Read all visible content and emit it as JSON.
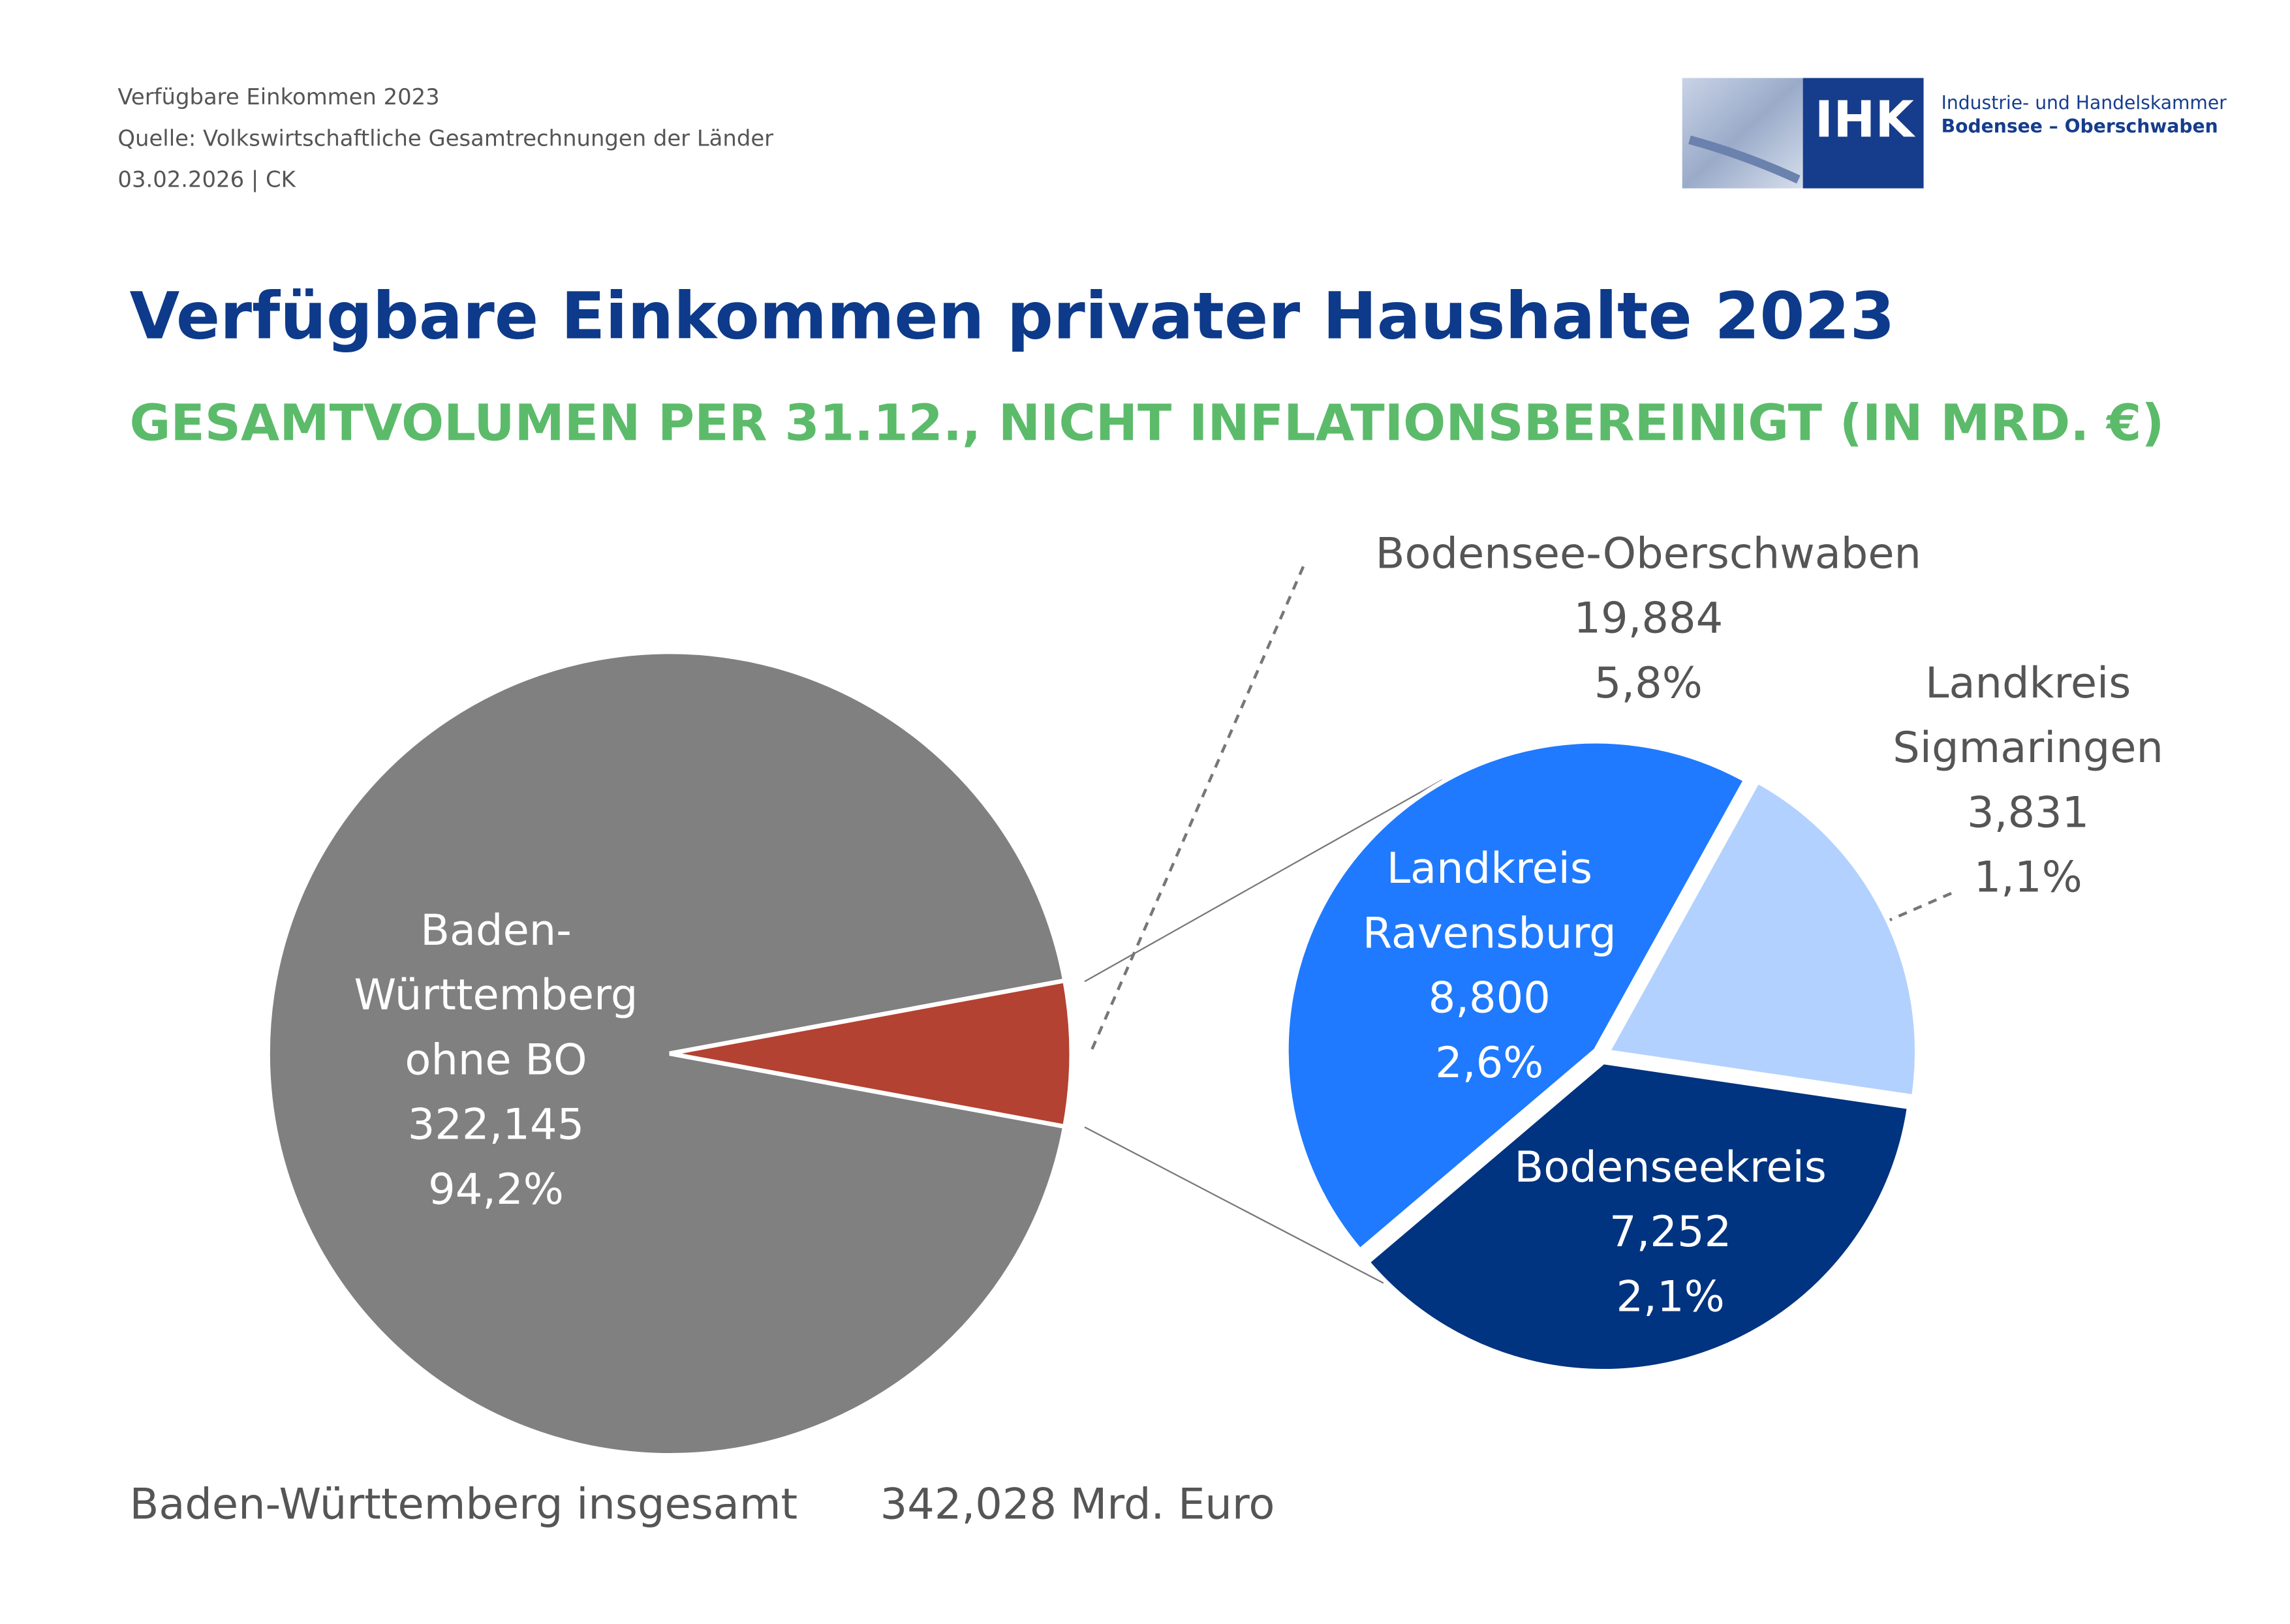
{
  "header": {
    "lines": [
      "Verfügbare Einkommen 2023",
      "Quelle: Volkswirtschaftliche Gesamtrechnungen der Länder",
      "03.02.2026 | CK"
    ],
    "logo_text": "IHK",
    "org_lines": [
      "Industrie- und Handelskammer",
      "Bodensee – Oberschwaben"
    ]
  },
  "chart_data": [
    {
      "type": "pie",
      "title": "Verfügbare Einkommen privater Haushalte 2023",
      "subtitle": "GESAMTVOLUMEN PER 31.12., NICHT INFLATIONSBEREINIGT (IN MRD. €)",
      "categories": [
        "Baden-Württemberg ohne BO",
        "Bodensee-Oberschwaben"
      ],
      "values": [
        322.145,
        19.884
      ],
      "value_labels": [
        "322,145",
        "19,884"
      ],
      "percentages": [
        94.2,
        5.8
      ],
      "percentage_labels": [
        "94,2%",
        "5,8%"
      ],
      "colors": [
        "#808080",
        "#b34232"
      ]
    },
    {
      "type": "pie",
      "categories": [
        "Landkreis Ravensburg",
        "Bodenseekreis",
        "Landkreis Sigmaringen"
      ],
      "values": [
        8.8,
        7.252,
        3.831
      ],
      "value_labels": [
        "8,800",
        "7,252",
        "3,831"
      ],
      "percentages": [
        2.6,
        2.1,
        1.1
      ],
      "percentage_labels": [
        "2,6%",
        "2,1%",
        "1,1%"
      ],
      "colors": [
        "#1f7aff",
        "#003380",
        "#b3d1ff"
      ]
    }
  ],
  "footer": {
    "label": "Baden-Württemberg insgesamt",
    "total_label": "342,028 Mrd. Euro"
  }
}
